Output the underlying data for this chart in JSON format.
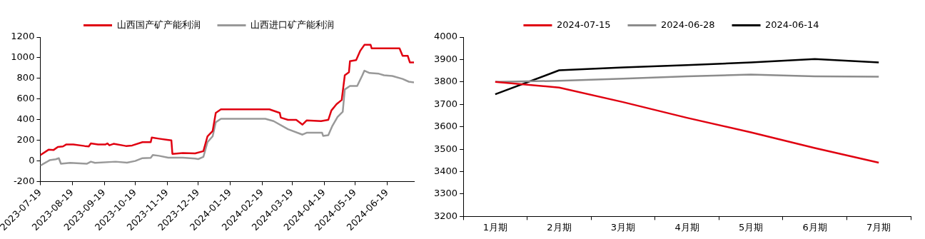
{
  "chart_data": [
    {
      "type": "line",
      "legend": "top",
      "grid": false,
      "marker": "none",
      "xlim": [
        "2023-07-19",
        "2024-07-15"
      ],
      "xticks": [
        "2023-07-19",
        "2023-08-19",
        "2023-09-19",
        "2023-10-19",
        "2023-11-19",
        "2023-12-19",
        "2024-01-19",
        "2024-02-19",
        "2024-03-19",
        "2024-04-19",
        "2024-05-19",
        "2024-06-19"
      ],
      "ylim": [
        -200,
        1200
      ],
      "yticks": [
        -200,
        0,
        200,
        400,
        600,
        800,
        1000,
        1200
      ],
      "series": [
        {
          "name": "山西国产矿产能利润",
          "color": "#e00010",
          "x": [
            "2023-07-19",
            "2023-07-27",
            "2023-08-01",
            "2023-08-05",
            "2023-08-10",
            "2023-08-13",
            "2023-08-20",
            "2023-08-31",
            "2023-09-04",
            "2023-09-06",
            "2023-09-13",
            "2023-09-20",
            "2023-09-22",
            "2023-09-24",
            "2023-09-28",
            "2023-10-10",
            "2023-10-16",
            "2023-10-26",
            "2023-11-03",
            "2023-11-04",
            "2023-11-11",
            "2023-11-19",
            "2023-11-23",
            "2023-11-24",
            "2023-12-04",
            "2023-12-16",
            "2023-12-24",
            "2023-12-28",
            "2024-01-02",
            "2024-01-05",
            "2024-01-10",
            "2024-02-26",
            "2024-03-07",
            "2024-03-08",
            "2024-03-15",
            "2024-03-23",
            "2024-03-29",
            "2024-04-02",
            "2024-04-16",
            "2024-04-23",
            "2024-04-26",
            "2024-05-01",
            "2024-05-06",
            "2024-05-09",
            "2024-05-13",
            "2024-05-14",
            "2024-05-20",
            "2024-05-24",
            "2024-05-28",
            "2024-06-03",
            "2024-06-04",
            "2024-07-01",
            "2024-07-04",
            "2024-07-09",
            "2024-07-11",
            "2024-07-15"
          ],
          "values": [
            57,
            109,
            107,
            136,
            141,
            159,
            159,
            145,
            141,
            170,
            159,
            159,
            170,
            152,
            166,
            145,
            150,
            182,
            182,
            227,
            216,
            205,
            200,
            68,
            77,
            73,
            95,
            239,
            291,
            466,
            500,
            500,
            466,
            420,
            398,
            398,
            352,
            393,
            386,
            398,
            489,
            550,
            591,
            830,
            859,
            966,
            977,
            1068,
            1125,
            1125,
            1091,
            1091,
            1018,
            1018,
            955,
            955
          ]
        },
        {
          "name": "山西进口矿产能利润",
          "color": "#999999",
          "x": [
            "2023-07-19",
            "2023-07-25",
            "2023-07-28",
            "2023-08-03",
            "2023-08-06",
            "2023-08-08",
            "2023-08-17",
            "2023-09-02",
            "2023-09-06",
            "2023-09-10",
            "2023-09-30",
            "2023-10-11",
            "2023-10-19",
            "2023-10-26",
            "2023-11-03",
            "2023-11-05",
            "2023-11-11",
            "2023-11-20",
            "2023-12-04",
            "2023-12-16",
            "2023-12-19",
            "2023-12-24",
            "2023-12-28",
            "2024-01-02",
            "2024-01-05",
            "2024-01-10",
            "2024-02-22",
            "2024-03-01",
            "2024-03-15",
            "2024-03-29",
            "2024-04-02",
            "2024-04-17",
            "2024-04-18",
            "2024-04-23",
            "2024-04-27",
            "2024-05-02",
            "2024-05-07",
            "2024-05-09",
            "2024-05-14",
            "2024-05-21",
            "2024-05-26",
            "2024-05-28",
            "2024-06-02",
            "2024-06-11",
            "2024-06-16",
            "2024-06-24",
            "2024-07-04",
            "2024-07-10",
            "2024-07-15"
          ],
          "values": [
            -45,
            -11,
            7,
            16,
            27,
            -27,
            -18,
            -27,
            -7,
            -18,
            -7,
            -16,
            0,
            27,
            30,
            57,
            50,
            32,
            32,
            23,
            18,
            39,
            182,
            239,
            375,
            409,
            409,
            386,
            307,
            255,
            273,
            273,
            243,
            250,
            341,
            427,
            477,
            693,
            727,
            727,
            830,
            875,
            852,
            845,
            830,
            823,
            795,
            768,
            761
          ]
        }
      ]
    },
    {
      "type": "line",
      "legend": "top",
      "grid": false,
      "marker": "none",
      "categories": [
        "1月期",
        "2月期",
        "3月期",
        "4月期",
        "5月期",
        "6月期",
        "7月期"
      ],
      "ylim": [
        3200,
        4000
      ],
      "yticks": [
        3200,
        3300,
        3400,
        3500,
        3600,
        3700,
        3800,
        3900,
        4000
      ],
      "series": [
        {
          "name": "2024-07-15",
          "color": "#e00010",
          "values": [
            3800,
            3775,
            3710,
            3640,
            3575,
            3505,
            3440
          ]
        },
        {
          "name": "2024-06-28",
          "color": "#8c8c8c",
          "values": [
            3800,
            3805,
            3815,
            3825,
            3833,
            3825,
            3823
          ]
        },
        {
          "name": "2024-06-14",
          "color": "#000000",
          "values": [
            3745,
            3852,
            3865,
            3875,
            3887,
            3902,
            3887
          ]
        }
      ]
    }
  ]
}
